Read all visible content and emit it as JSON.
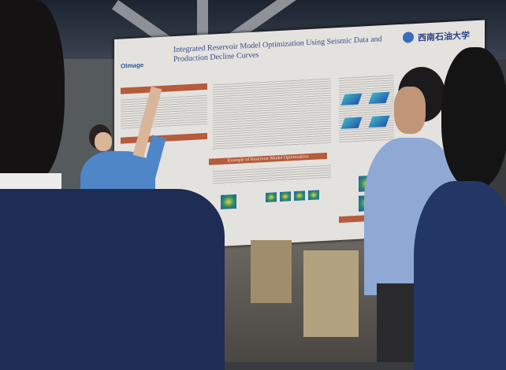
{
  "poster": {
    "title": "Integrated Reservoir Model Optimization Using Seismic Data and Production Decline Curves",
    "logo": "OImage",
    "university": "西南石油大学",
    "section_header": "Example of Reservoir Model Optimization"
  },
  "colors": {
    "header_bar": "#b65b3c",
    "shirt": "#4f86c8",
    "jacket": "#1e2d54"
  }
}
